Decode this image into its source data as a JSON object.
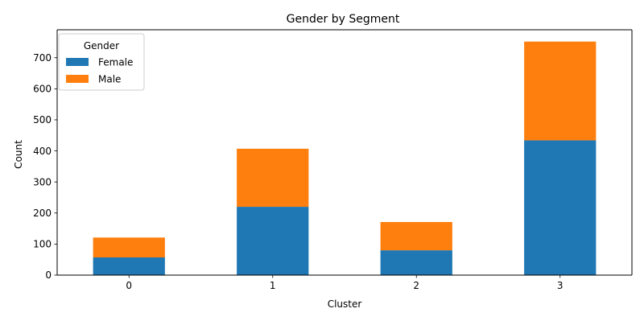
{
  "chart_data": {
    "type": "bar",
    "stacked": true,
    "title": "Gender by Segment",
    "xlabel": "Cluster",
    "ylabel": "Count",
    "categories": [
      "0",
      "1",
      "2",
      "3"
    ],
    "series": [
      {
        "name": "Female",
        "color": "#1f77b4",
        "values": [
          57,
          220,
          80,
          434
        ]
      },
      {
        "name": "Male",
        "color": "#ff7f0e",
        "values": [
          64,
          187,
          91,
          318
        ]
      }
    ],
    "ylim": [
      0,
      790
    ],
    "yticks": [
      0,
      100,
      200,
      300,
      400,
      500,
      600,
      700
    ],
    "legend": {
      "title": "Gender",
      "position": "top-left"
    },
    "grid": false
  }
}
